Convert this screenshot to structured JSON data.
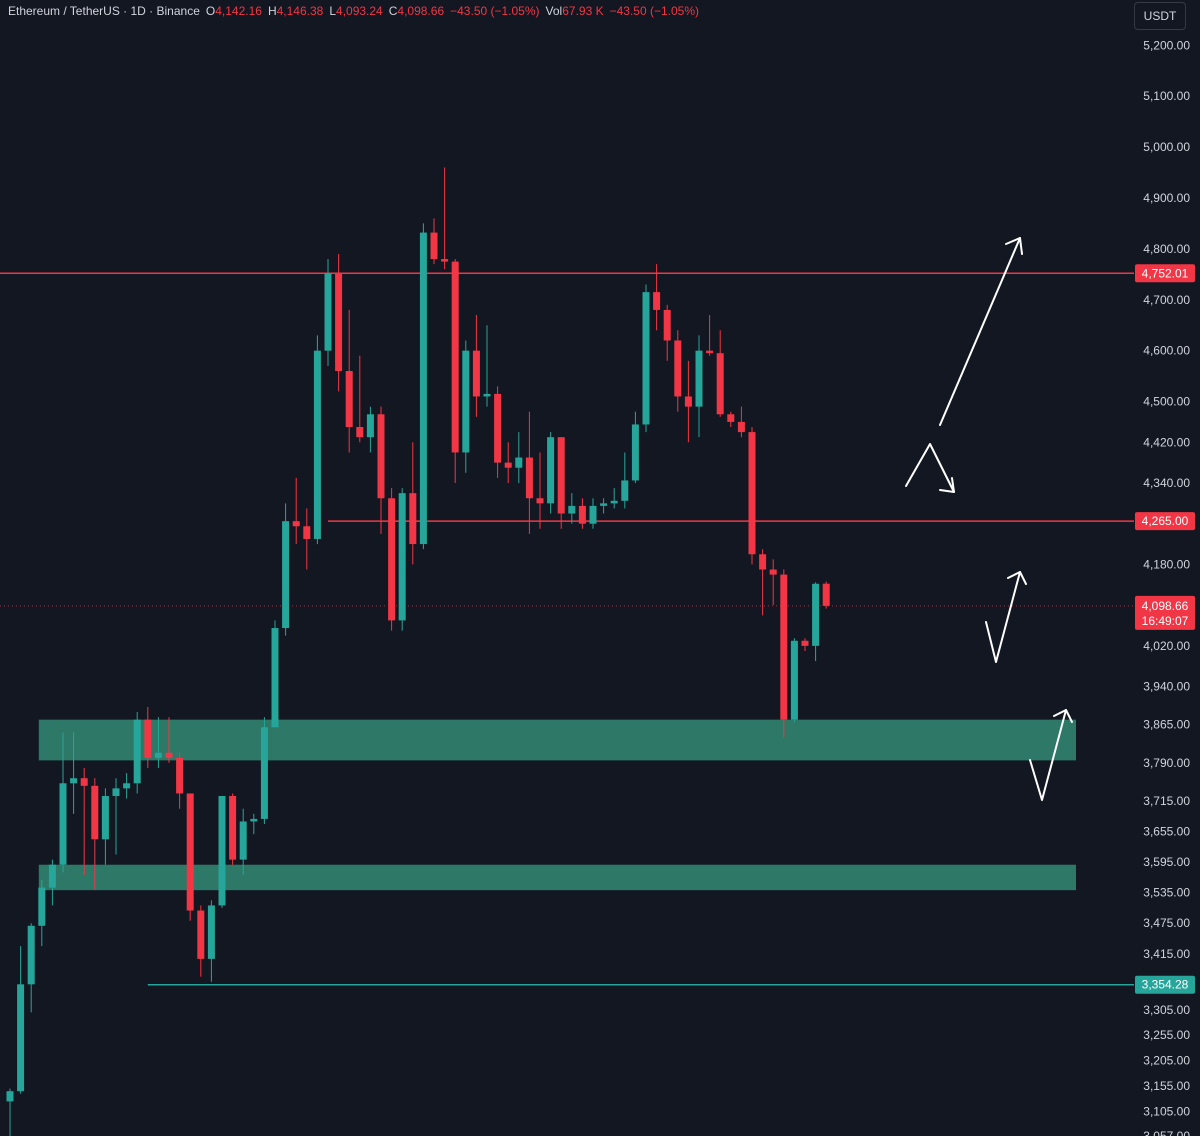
{
  "header": {
    "symbol": "Ethereum / TetherUS · 1D · Binance",
    "o_label": "O",
    "o_value": "4,142.16",
    "h_label": "H",
    "h_value": "4,146.38",
    "l_label": "L",
    "l_value": "4,093.24",
    "c_label": "C",
    "c_value": "4,098.66",
    "change": "−43.50 (−1.05%)",
    "vol_label": "Vol",
    "vol_value": "67.93 K",
    "vol_change": "−43.50 (−1.05%)"
  },
  "currency_button": "USDT",
  "colors": {
    "background": "#131722",
    "up": "#26a69a",
    "down": "#f23645",
    "zone": "#2e7d6b",
    "text": "#d1d4dc"
  },
  "chart_data": {
    "type": "candlestick",
    "interval": "1D",
    "ylim": [
      3057,
      5230
    ],
    "y_ticks": [
      {
        "v": 5200,
        "label": "5,200.00"
      },
      {
        "v": 5100,
        "label": "5,100.00"
      },
      {
        "v": 5000,
        "label": "5,000.00"
      },
      {
        "v": 4900,
        "label": "4,900.00"
      },
      {
        "v": 4800,
        "label": "4,800.00"
      },
      {
        "v": 4700,
        "label": "4,700.00"
      },
      {
        "v": 4600,
        "label": "4,600.00"
      },
      {
        "v": 4500,
        "label": "4,500.00"
      },
      {
        "v": 4420,
        "label": "4,420.00"
      },
      {
        "v": 4340,
        "label": "4,340.00"
      },
      {
        "v": 4180,
        "label": "4,180.00"
      },
      {
        "v": 4020,
        "label": "4,020.00"
      },
      {
        "v": 3940,
        "label": "3,940.00"
      },
      {
        "v": 3865,
        "label": "3,865.00"
      },
      {
        "v": 3790,
        "label": "3,790.00"
      },
      {
        "v": 3715,
        "label": "3,715.00"
      },
      {
        "v": 3655,
        "label": "3,655.00"
      },
      {
        "v": 3595,
        "label": "3,595.00"
      },
      {
        "v": 3535,
        "label": "3,535.00"
      },
      {
        "v": 3475,
        "label": "3,475.00"
      },
      {
        "v": 3415,
        "label": "3,415.00"
      },
      {
        "v": 3305,
        "label": "3,305.00"
      },
      {
        "v": 3255,
        "label": "3,255.00"
      },
      {
        "v": 3205,
        "label": "3,205.00"
      },
      {
        "v": 3155,
        "label": "3,155.00"
      },
      {
        "v": 3105,
        "label": "3,105.00"
      },
      {
        "v": 3057,
        "label": "3,057.00"
      }
    ],
    "price_tags": [
      {
        "v": 4752.01,
        "label": "4,752.01",
        "color": "#f23645"
      },
      {
        "v": 4265.0,
        "label": "4,265.00",
        "color": "#f23645"
      },
      {
        "v": 3354.28,
        "label": "3,354.28",
        "color": "#26a69a"
      }
    ],
    "last_price": {
      "v": 4098.66,
      "label": "4,098.66",
      "countdown": "16:49:07"
    },
    "horizontal_lines": [
      {
        "v": 4752.01,
        "from_index": 0,
        "color": "#f23645"
      },
      {
        "v": 4265.0,
        "from_index": 30,
        "color": "#f23645"
      },
      {
        "v": 3354.28,
        "from_index": 13,
        "color": "#26a69a"
      }
    ],
    "zones": [
      {
        "top": 3875,
        "bottom": 3795,
        "from_index": 3
      },
      {
        "top": 3590,
        "bottom": 3540,
        "from_index": 3
      }
    ],
    "candles": [
      {
        "o": 3125,
        "h": 3150,
        "l": 3050,
        "c": 3145
      },
      {
        "o": 3145,
        "h": 3430,
        "l": 3140,
        "c": 3355
      },
      {
        "o": 3355,
        "h": 3475,
        "l": 3300,
        "c": 3470
      },
      {
        "o": 3470,
        "h": 3560,
        "l": 3430,
        "c": 3545
      },
      {
        "o": 3545,
        "h": 3600,
        "l": 3510,
        "c": 3590
      },
      {
        "o": 3590,
        "h": 3850,
        "l": 3575,
        "c": 3750
      },
      {
        "o": 3750,
        "h": 3850,
        "l": 3690,
        "c": 3760
      },
      {
        "o": 3760,
        "h": 3780,
        "l": 3570,
        "c": 3745
      },
      {
        "o": 3745,
        "h": 3760,
        "l": 3540,
        "c": 3640
      },
      {
        "o": 3640,
        "h": 3740,
        "l": 3590,
        "c": 3725
      },
      {
        "o": 3725,
        "h": 3760,
        "l": 3610,
        "c": 3740
      },
      {
        "o": 3740,
        "h": 3770,
        "l": 3720,
        "c": 3750
      },
      {
        "o": 3750,
        "h": 3890,
        "l": 3730,
        "c": 3875
      },
      {
        "o": 3875,
        "h": 3900,
        "l": 3780,
        "c": 3800
      },
      {
        "o": 3800,
        "h": 3880,
        "l": 3780,
        "c": 3810
      },
      {
        "o": 3810,
        "h": 3880,
        "l": 3790,
        "c": 3800
      },
      {
        "o": 3800,
        "h": 3810,
        "l": 3700,
        "c": 3730
      },
      {
        "o": 3730,
        "h": 3730,
        "l": 3480,
        "c": 3500
      },
      {
        "o": 3500,
        "h": 3510,
        "l": 3370,
        "c": 3405
      },
      {
        "o": 3405,
        "h": 3520,
        "l": 3360,
        "c": 3510
      },
      {
        "o": 3510,
        "h": 3725,
        "l": 3505,
        "c": 3725
      },
      {
        "o": 3725,
        "h": 3730,
        "l": 3590,
        "c": 3600
      },
      {
        "o": 3600,
        "h": 3700,
        "l": 3570,
        "c": 3675
      },
      {
        "o": 3675,
        "h": 3690,
        "l": 3650,
        "c": 3680
      },
      {
        "o": 3680,
        "h": 3880,
        "l": 3670,
        "c": 3860
      },
      {
        "o": 3860,
        "h": 4070,
        "l": 3860,
        "c": 4055
      },
      {
        "o": 4055,
        "h": 4300,
        "l": 4040,
        "c": 4265
      },
      {
        "o": 4265,
        "h": 4350,
        "l": 4220,
        "c": 4255
      },
      {
        "o": 4255,
        "h": 4290,
        "l": 4170,
        "c": 4230
      },
      {
        "o": 4230,
        "h": 4630,
        "l": 4220,
        "c": 4600
      },
      {
        "o": 4600,
        "h": 4780,
        "l": 4570,
        "c": 4752
      },
      {
        "o": 4752,
        "h": 4790,
        "l": 4520,
        "c": 4560
      },
      {
        "o": 4560,
        "h": 4680,
        "l": 4400,
        "c": 4450
      },
      {
        "o": 4450,
        "h": 4590,
        "l": 4420,
        "c": 4430
      },
      {
        "o": 4430,
        "h": 4490,
        "l": 4400,
        "c": 4475
      },
      {
        "o": 4475,
        "h": 4490,
        "l": 4240,
        "c": 4310
      },
      {
        "o": 4310,
        "h": 4330,
        "l": 4050,
        "c": 4070
      },
      {
        "o": 4070,
        "h": 4330,
        "l": 4050,
        "c": 4320
      },
      {
        "o": 4320,
        "h": 4420,
        "l": 4180,
        "c": 4220
      },
      {
        "o": 4220,
        "h": 4850,
        "l": 4210,
        "c": 4832
      },
      {
        "o": 4832,
        "h": 4860,
        "l": 4770,
        "c": 4780
      },
      {
        "o": 4780,
        "h": 4960,
        "l": 4760,
        "c": 4775
      },
      {
        "o": 4775,
        "h": 4780,
        "l": 4340,
        "c": 4400
      },
      {
        "o": 4400,
        "h": 4620,
        "l": 4360,
        "c": 4600
      },
      {
        "o": 4600,
        "h": 4670,
        "l": 4470,
        "c": 4510
      },
      {
        "o": 4510,
        "h": 4650,
        "l": 4490,
        "c": 4515
      },
      {
        "o": 4515,
        "h": 4530,
        "l": 4350,
        "c": 4380
      },
      {
        "o": 4380,
        "h": 4420,
        "l": 4340,
        "c": 4370
      },
      {
        "o": 4370,
        "h": 4440,
        "l": 4340,
        "c": 4390
      },
      {
        "o": 4390,
        "h": 4480,
        "l": 4240,
        "c": 4310
      },
      {
        "o": 4310,
        "h": 4400,
        "l": 4250,
        "c": 4300
      },
      {
        "o": 4300,
        "h": 4440,
        "l": 4280,
        "c": 4430
      },
      {
        "o": 4430,
        "h": 4430,
        "l": 4250,
        "c": 4280
      },
      {
        "o": 4280,
        "h": 4320,
        "l": 4260,
        "c": 4295
      },
      {
        "o": 4295,
        "h": 4310,
        "l": 4250,
        "c": 4260
      },
      {
        "o": 4260,
        "h": 4310,
        "l": 4250,
        "c": 4295
      },
      {
        "o": 4295,
        "h": 4310,
        "l": 4280,
        "c": 4300
      },
      {
        "o": 4300,
        "h": 4330,
        "l": 4290,
        "c": 4305
      },
      {
        "o": 4305,
        "h": 4400,
        "l": 4290,
        "c": 4345
      },
      {
        "o": 4345,
        "h": 4480,
        "l": 4340,
        "c": 4455
      },
      {
        "o": 4455,
        "h": 4730,
        "l": 4440,
        "c": 4715
      },
      {
        "o": 4715,
        "h": 4770,
        "l": 4640,
        "c": 4680
      },
      {
        "o": 4680,
        "h": 4690,
        "l": 4580,
        "c": 4620
      },
      {
        "o": 4620,
        "h": 4640,
        "l": 4480,
        "c": 4510
      },
      {
        "o": 4510,
        "h": 4580,
        "l": 4420,
        "c": 4490
      },
      {
        "o": 4490,
        "h": 4630,
        "l": 4430,
        "c": 4600
      },
      {
        "o": 4600,
        "h": 4670,
        "l": 4590,
        "c": 4595
      },
      {
        "o": 4595,
        "h": 4640,
        "l": 4470,
        "c": 4475
      },
      {
        "o": 4475,
        "h": 4480,
        "l": 4450,
        "c": 4460
      },
      {
        "o": 4460,
        "h": 4490,
        "l": 4430,
        "c": 4440
      },
      {
        "o": 4440,
        "h": 4450,
        "l": 4180,
        "c": 4200
      },
      {
        "o": 4200,
        "h": 4210,
        "l": 4080,
        "c": 4170
      },
      {
        "o": 4170,
        "h": 4190,
        "l": 4100,
        "c": 4160
      },
      {
        "o": 4160,
        "h": 4170,
        "l": 3840,
        "c": 3875
      },
      {
        "o": 3875,
        "h": 4035,
        "l": 3870,
        "c": 4030
      },
      {
        "o": 4030,
        "h": 4035,
        "l": 4010,
        "c": 4020
      },
      {
        "o": 4020,
        "h": 4145,
        "l": 3990,
        "c": 4142
      },
      {
        "o": 4142.16,
        "h": 4146.38,
        "l": 4093.24,
        "c": 4098.66
      }
    ]
  }
}
